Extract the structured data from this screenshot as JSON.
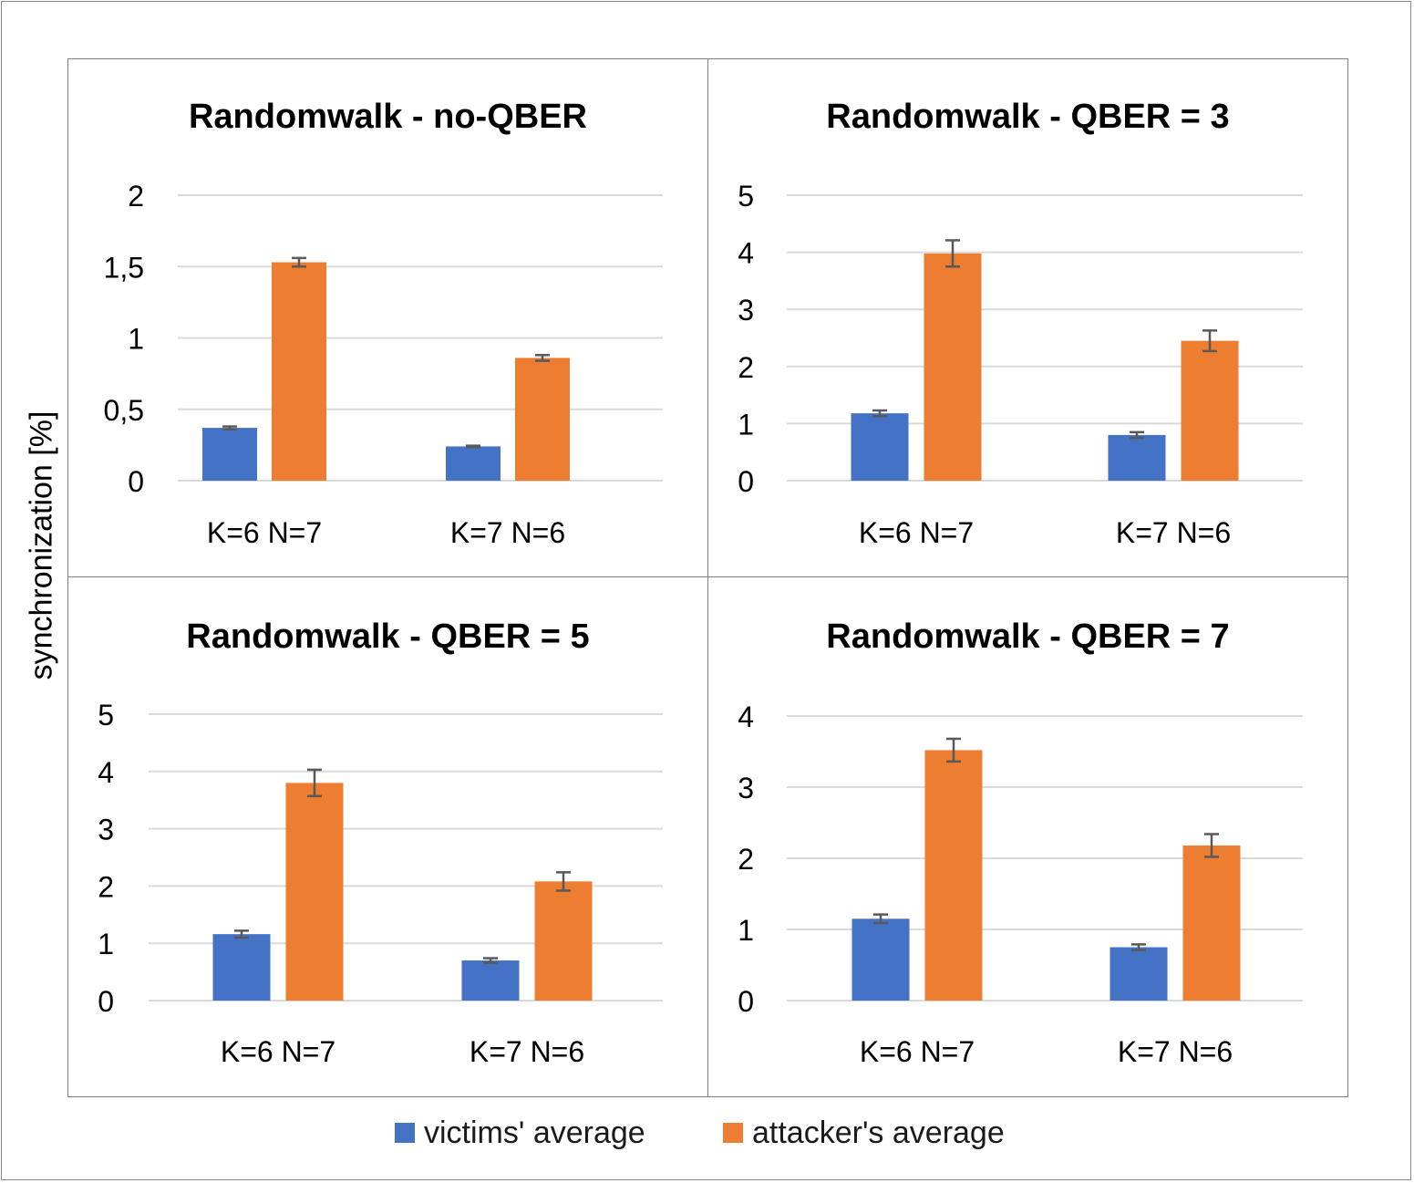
{
  "ylabel": "synchronization [%]",
  "colors": {
    "victims": "#4472c4",
    "attacker": "#ed7d31",
    "grid": "#d9d9d9",
    "errorbar": "#595959"
  },
  "legend": {
    "victims": "victims' average",
    "attacker": "attacker's average"
  },
  "chart_data": [
    {
      "type": "bar",
      "title": "Randomwalk - no-QBER",
      "categories": [
        "K=6 N=7",
        "K=7 N=6"
      ],
      "series": [
        {
          "name": "victims' average",
          "values": [
            0.37,
            0.24
          ],
          "errors": [
            0.01,
            0.005
          ]
        },
        {
          "name": "attacker's average",
          "values": [
            1.53,
            0.86
          ],
          "errors": [
            0.03,
            0.02
          ]
        }
      ],
      "ylim": [
        0,
        2
      ],
      "yticks": [
        0,
        0.5,
        1,
        1.5,
        2
      ],
      "ytick_labels": [
        "0",
        "0,5",
        "1",
        "1,5",
        "2"
      ],
      "grid": true
    },
    {
      "type": "bar",
      "title": "Randomwalk - QBER = 3",
      "categories": [
        "K=6 N=7",
        "K=7 N=6"
      ],
      "series": [
        {
          "name": "victims' average",
          "values": [
            1.18,
            0.8
          ],
          "errors": [
            0.05,
            0.05
          ]
        },
        {
          "name": "attacker's average",
          "values": [
            3.98,
            2.45
          ],
          "errors": [
            0.23,
            0.18
          ]
        }
      ],
      "ylim": [
        0,
        5
      ],
      "yticks": [
        0,
        1,
        2,
        3,
        4,
        5
      ],
      "ytick_labels": [
        "0",
        "1",
        "2",
        "3",
        "4",
        "5"
      ],
      "grid": true
    },
    {
      "type": "bar",
      "title": "Randomwalk - QBER = 5",
      "categories": [
        "K=6 N=7",
        "K=7 N=6"
      ],
      "series": [
        {
          "name": "victims' average",
          "values": [
            1.16,
            0.7
          ],
          "errors": [
            0.06,
            0.04
          ]
        },
        {
          "name": "attacker's average",
          "values": [
            3.8,
            2.08
          ],
          "errors": [
            0.23,
            0.16
          ]
        }
      ],
      "ylim": [
        0,
        5
      ],
      "yticks": [
        0,
        1,
        2,
        3,
        4,
        5
      ],
      "ytick_labels": [
        "0",
        "1",
        "2",
        "3",
        "4",
        "5"
      ],
      "grid": true
    },
    {
      "type": "bar",
      "title": "Randomwalk - QBER = 7",
      "categories": [
        "K=6 N=7",
        "K=7 N=6"
      ],
      "series": [
        {
          "name": "victims' average",
          "values": [
            1.15,
            0.75
          ],
          "errors": [
            0.06,
            0.04
          ]
        },
        {
          "name": "attacker's average",
          "values": [
            3.52,
            2.18
          ],
          "errors": [
            0.16,
            0.16
          ]
        }
      ],
      "ylim": [
        0,
        4
      ],
      "yticks": [
        0,
        1,
        2,
        3,
        4
      ],
      "ytick_labels": [
        "0",
        "1",
        "2",
        "3",
        "4"
      ],
      "grid": true
    }
  ]
}
